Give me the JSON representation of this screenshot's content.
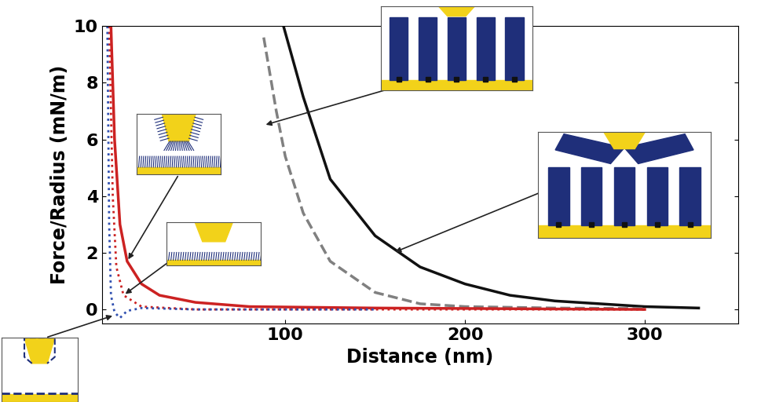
{
  "chart_data": {
    "type": "line",
    "x_label": "Distance (nm)",
    "y_label": "Force/Radius (mN/m)",
    "xlim": [
      -2,
      352
    ],
    "xticks": [
      100,
      200,
      300
    ],
    "ylim": [
      -0.5,
      10
    ],
    "yticks": [
      0,
      2,
      4,
      6,
      8,
      10
    ],
    "grid": false,
    "series": [
      {
        "color": "#111111",
        "line_style": "solid",
        "x": [
          99,
          110,
          125,
          150,
          175,
          200,
          225,
          250,
          275,
          300,
          330
        ],
        "values": [
          10,
          7.5,
          4.6,
          2.6,
          1.5,
          0.9,
          0.5,
          0.3,
          0.2,
          0.1,
          0.05
        ]
      },
      {
        "color": "#808080",
        "line_style": "dashed",
        "x": [
          88,
          95,
          100,
          110,
          125,
          150,
          175,
          200,
          250,
          300
        ],
        "values": [
          9.6,
          7.0,
          5.4,
          3.4,
          1.7,
          0.6,
          0.2,
          0.1,
          0.05,
          0.03
        ]
      },
      {
        "color": "#cc2222",
        "line_style": "solid",
        "x": [
          3,
          5,
          8,
          12,
          20,
          30,
          50,
          80,
          150,
          300
        ],
        "values": [
          10,
          6,
          3,
          1.7,
          0.9,
          0.5,
          0.25,
          0.1,
          0.05,
          0.0
        ]
      },
      {
        "color": "#cc2222",
        "line_style": "dotted",
        "x": [
          2,
          4,
          6,
          10,
          20,
          50,
          300
        ],
        "values": [
          10,
          4,
          1.5,
          0.5,
          0.1,
          0,
          0
        ]
      },
      {
        "color": "#3050b0",
        "line_style": "dotted",
        "x": [
          1,
          2,
          3,
          5,
          8,
          12,
          20,
          50,
          150
        ],
        "values": [
          10,
          3,
          0.5,
          -0.1,
          -0.3,
          -0.05,
          0.05,
          0,
          0
        ]
      }
    ]
  }
}
